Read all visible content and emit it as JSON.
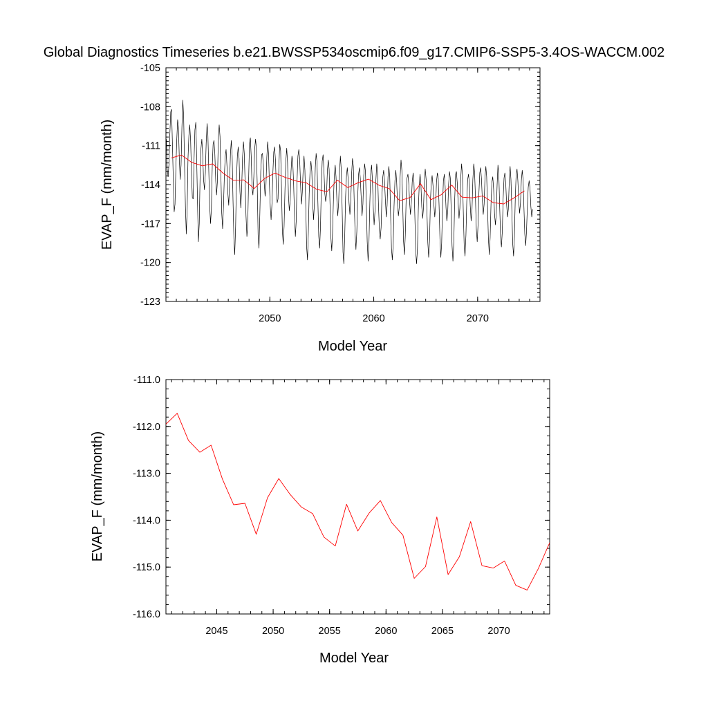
{
  "title": "Global Diagnostics Timeseries b.e21.BWSSP534oscmip6.f09_g17.CMIP6-SSP5-3.4OS-WACCM.002",
  "colors": {
    "monthly": "#000000",
    "annual": "#ff0000",
    "frame": "#000000"
  },
  "chart_data": [
    {
      "type": "line",
      "xlabel": "Model Year",
      "ylabel": "EVAP_F (mm/month)",
      "xlim": [
        2040.0,
        2076.0
      ],
      "ylim": [
        -123,
        -105
      ],
      "xticks": [
        2050,
        2060,
        2070
      ],
      "xtick_labels": [
        "2050",
        "2060",
        "2070"
      ],
      "yticks": [
        -105,
        -108,
        -111,
        -114,
        -117,
        -120,
        -123
      ],
      "ytick_labels": [
        "-105",
        "-108",
        "-111",
        "-114",
        "-117",
        "-120",
        "-123"
      ],
      "series": [
        {
          "color": "#000000",
          "x_start": 2040.04,
          "x_step": 0.08333,
          "values": [
            -110.5,
            -112.8,
            -113.4,
            -112.4,
            -110.2,
            -108.4,
            -108.2,
            -110.9,
            -113.6,
            -116.1,
            -115.5,
            -112.7,
            -110.6,
            -109.0,
            -109.6,
            -112.1,
            -113.6,
            -112.5,
            -109.6,
            -107.5,
            -108.7,
            -112.5,
            -115.7,
            -117.8,
            -115.9,
            -112.0,
            -110.2,
            -109.4,
            -110.6,
            -113.1,
            -115.0,
            -115.1,
            -112.0,
            -109.8,
            -109.2,
            -111.8,
            -115.5,
            -118.4,
            -117.0,
            -113.3,
            -111.2,
            -110.5,
            -111.7,
            -113.6,
            -114.4,
            -113.1,
            -110.8,
            -109.3,
            -110.2,
            -113.0,
            -115.5,
            -117.0,
            -115.9,
            -112.6,
            -110.9,
            -110.6,
            -111.6,
            -113.7,
            -114.8,
            -113.7,
            -110.6,
            -109.4,
            -110.3,
            -113.3,
            -116.2,
            -117.4,
            -115.6,
            -113.3,
            -111.8,
            -111.3,
            -112.6,
            -114.6,
            -115.6,
            -114.0,
            -111.6,
            -110.6,
            -111.8,
            -115.2,
            -118.2,
            -119.4,
            -117.2,
            -113.6,
            -111.8,
            -111.1,
            -112.0,
            -114.5,
            -115.8,
            -114.3,
            -111.9,
            -110.7,
            -111.6,
            -114.0,
            -116.4,
            -118.0,
            -117.1,
            -113.6,
            -110.8,
            -110.4,
            -111.8,
            -114.3,
            -114.8,
            -113.4,
            -111.3,
            -110.5,
            -111.2,
            -114.1,
            -117.9,
            -118.9,
            -116.3,
            -113.0,
            -111.7,
            -111.6,
            -112.5,
            -113.8,
            -114.9,
            -114.2,
            -111.9,
            -110.7,
            -111.6,
            -113.9,
            -115.7,
            -116.7,
            -115.4,
            -113.2,
            -111.5,
            -111.1,
            -112.1,
            -114.1,
            -115.4,
            -115.1,
            -112.5,
            -110.9,
            -111.4,
            -114.4,
            -117.6,
            -118.6,
            -117.2,
            -114.3,
            -112.2,
            -111.2,
            -112.3,
            -114.8,
            -116.0,
            -115.3,
            -113.0,
            -111.8,
            -112.2,
            -114.0,
            -116.3,
            -118.0,
            -116.8,
            -113.6,
            -111.8,
            -111.3,
            -112.0,
            -114.0,
            -115.5,
            -114.6,
            -112.8,
            -111.8,
            -112.9,
            -115.6,
            -118.8,
            -119.8,
            -117.6,
            -114.7,
            -112.8,
            -112.2,
            -113.0,
            -115.4,
            -116.7,
            -115.5,
            -112.7,
            -111.6,
            -112.3,
            -115.2,
            -118.0,
            -118.9,
            -117.3,
            -114.1,
            -112.2,
            -111.7,
            -112.9,
            -114.7,
            -115.3,
            -114.8,
            -112.9,
            -112.1,
            -112.8,
            -115.5,
            -118.0,
            -119.1,
            -117.7,
            -115.1,
            -113.3,
            -112.5,
            -113.4,
            -115.3,
            -116.4,
            -115.4,
            -113.0,
            -111.8,
            -112.9,
            -115.7,
            -119.2,
            -120.1,
            -118.0,
            -115.0,
            -113.3,
            -112.7,
            -113.6,
            -115.4,
            -116.3,
            -115.3,
            -113.1,
            -112.0,
            -112.6,
            -115.3,
            -117.8,
            -119.0,
            -117.6,
            -114.9,
            -113.2,
            -112.7,
            -113.5,
            -115.0,
            -116.4,
            -115.5,
            -113.3,
            -112.4,
            -113.0,
            -115.7,
            -118.4,
            -119.9,
            -118.6,
            -115.4,
            -113.2,
            -112.5,
            -113.6,
            -115.8,
            -117.1,
            -116.0,
            -113.7,
            -112.4,
            -113.2,
            -115.6,
            -117.5,
            -118.2,
            -117.3,
            -114.9,
            -113.4,
            -112.9,
            -113.8,
            -115.2,
            -116.5,
            -115.6,
            -113.4,
            -112.6,
            -113.4,
            -116.3,
            -118.9,
            -119.8,
            -118.6,
            -115.7,
            -113.7,
            -112.9,
            -113.8,
            -115.5,
            -116.4,
            -115.7,
            -113.4,
            -112.1,
            -112.9,
            -115.6,
            -118.4,
            -119.4,
            -117.9,
            -114.9,
            -113.5,
            -113.2,
            -113.9,
            -115.4,
            -116.3,
            -115.3,
            -113.8,
            -113.1,
            -113.8,
            -116.4,
            -119.2,
            -120.1,
            -118.9,
            -116.0,
            -114.1,
            -113.2,
            -114.0,
            -115.7,
            -116.6,
            -115.8,
            -113.9,
            -112.8,
            -113.6,
            -116.1,
            -118.5,
            -119.6,
            -118.3,
            -115.3,
            -113.8,
            -113.3,
            -114.1,
            -115.6,
            -116.5,
            -115.6,
            -113.8,
            -113.1,
            -113.5,
            -115.7,
            -118.2,
            -119.6,
            -118.5,
            -115.6,
            -113.7,
            -113.2,
            -114.1,
            -115.8,
            -116.8,
            -116.1,
            -114.0,
            -113.0,
            -113.5,
            -116.1,
            -118.7,
            -119.9,
            -118.4,
            -115.2,
            -113.2,
            -113.0,
            -113.9,
            -115.4,
            -116.6,
            -115.8,
            -113.5,
            -112.4,
            -113.3,
            -116.1,
            -118.8,
            -119.5,
            -117.9,
            -115.3,
            -113.6,
            -113.2,
            -113.9,
            -115.6,
            -116.8,
            -115.9,
            -113.6,
            -112.4,
            -113.0,
            -115.1,
            -117.4,
            -118.4,
            -117.1,
            -114.6,
            -113.1,
            -112.7,
            -113.6,
            -115.3,
            -116.3,
            -115.5,
            -113.5,
            -112.6,
            -113.4,
            -115.8,
            -118.2,
            -119.4,
            -118.1,
            -115.4,
            -113.8,
            -113.4,
            -114.4,
            -116.2,
            -117.1,
            -116.3,
            -114.0,
            -112.5,
            -113.3,
            -115.7,
            -118.0,
            -118.8,
            -117.6,
            -115.1,
            -113.5,
            -113.1,
            -113.9,
            -115.5,
            -116.5,
            -115.9,
            -113.8,
            -112.6,
            -113.6,
            -116.0,
            -118.5,
            -119.5,
            -118.0,
            -115.0,
            -113.2,
            -112.8,
            -113.7,
            -115.3,
            -116.2,
            -115.4,
            -113.7,
            -112.9,
            -113.6,
            -115.8,
            -117.8,
            -118.7,
            -117.6,
            -115.6,
            -114.2,
            -113.7,
            -114.3,
            -115.7,
            -116.5,
            -115.9
          ]
        },
        {
          "color": "#ff0000",
          "x": [
            2040.5,
            2041.5,
            2042.5,
            2043.5,
            2044.5,
            2045.5,
            2046.5,
            2047.5,
            2048.5,
            2049.5,
            2050.5,
            2051.5,
            2052.5,
            2053.5,
            2054.5,
            2055.5,
            2056.5,
            2057.5,
            2058.5,
            2059.5,
            2060.5,
            2061.5,
            2062.5,
            2063.5,
            2064.5,
            2065.5,
            2066.5,
            2067.5,
            2068.5,
            2069.5,
            2070.5,
            2071.5,
            2072.5,
            2073.5,
            2074.5
          ],
          "values": [
            -111.95,
            -111.72,
            -112.3,
            -112.55,
            -112.4,
            -113.12,
            -113.67,
            -113.64,
            -114.3,
            -113.52,
            -113.11,
            -113.45,
            -113.72,
            -113.86,
            -114.36,
            -114.55,
            -113.66,
            -114.23,
            -113.85,
            -113.58,
            -114.05,
            -114.32,
            -115.24,
            -114.99,
            -113.93,
            -115.16,
            -114.78,
            -114.03,
            -114.97,
            -115.02,
            -114.87,
            -115.39,
            -115.49,
            -115.03,
            -114.48
          ]
        }
      ]
    },
    {
      "type": "line",
      "xlabel": "Model Year",
      "ylabel": "EVAP_F (mm/month)",
      "xlim": [
        2040.5,
        2074.5
      ],
      "ylim": [
        -116.0,
        -111.0
      ],
      "xticks": [
        2045,
        2050,
        2055,
        2060,
        2065,
        2070
      ],
      "xtick_labels": [
        "2045",
        "2050",
        "2055",
        "2060",
        "2065",
        "2070"
      ],
      "yticks": [
        -111.0,
        -112.0,
        -113.0,
        -114.0,
        -115.0,
        -116.0
      ],
      "ytick_labels": [
        "-111.0",
        "-112.0",
        "-113.0",
        "-114.0",
        "-115.0",
        "-116.0"
      ],
      "series": [
        {
          "color": "#ff0000",
          "x": [
            2040.5,
            2041.5,
            2042.5,
            2043.5,
            2044.5,
            2045.5,
            2046.5,
            2047.5,
            2048.5,
            2049.5,
            2050.5,
            2051.5,
            2052.5,
            2053.5,
            2054.5,
            2055.5,
            2056.5,
            2057.5,
            2058.5,
            2059.5,
            2060.5,
            2061.5,
            2062.5,
            2063.5,
            2064.5,
            2065.5,
            2066.5,
            2067.5,
            2068.5,
            2069.5,
            2070.5,
            2071.5,
            2072.5,
            2073.5,
            2074.5
          ],
          "values": [
            -111.95,
            -111.72,
            -112.3,
            -112.55,
            -112.4,
            -113.12,
            -113.67,
            -113.64,
            -114.3,
            -113.52,
            -113.11,
            -113.45,
            -113.72,
            -113.86,
            -114.36,
            -114.55,
            -113.66,
            -114.23,
            -113.85,
            -113.58,
            -114.05,
            -114.32,
            -115.24,
            -114.99,
            -113.93,
            -115.16,
            -114.78,
            -114.03,
            -114.97,
            -115.02,
            -114.87,
            -115.39,
            -115.49,
            -115.03,
            -114.48
          ]
        }
      ]
    }
  ]
}
